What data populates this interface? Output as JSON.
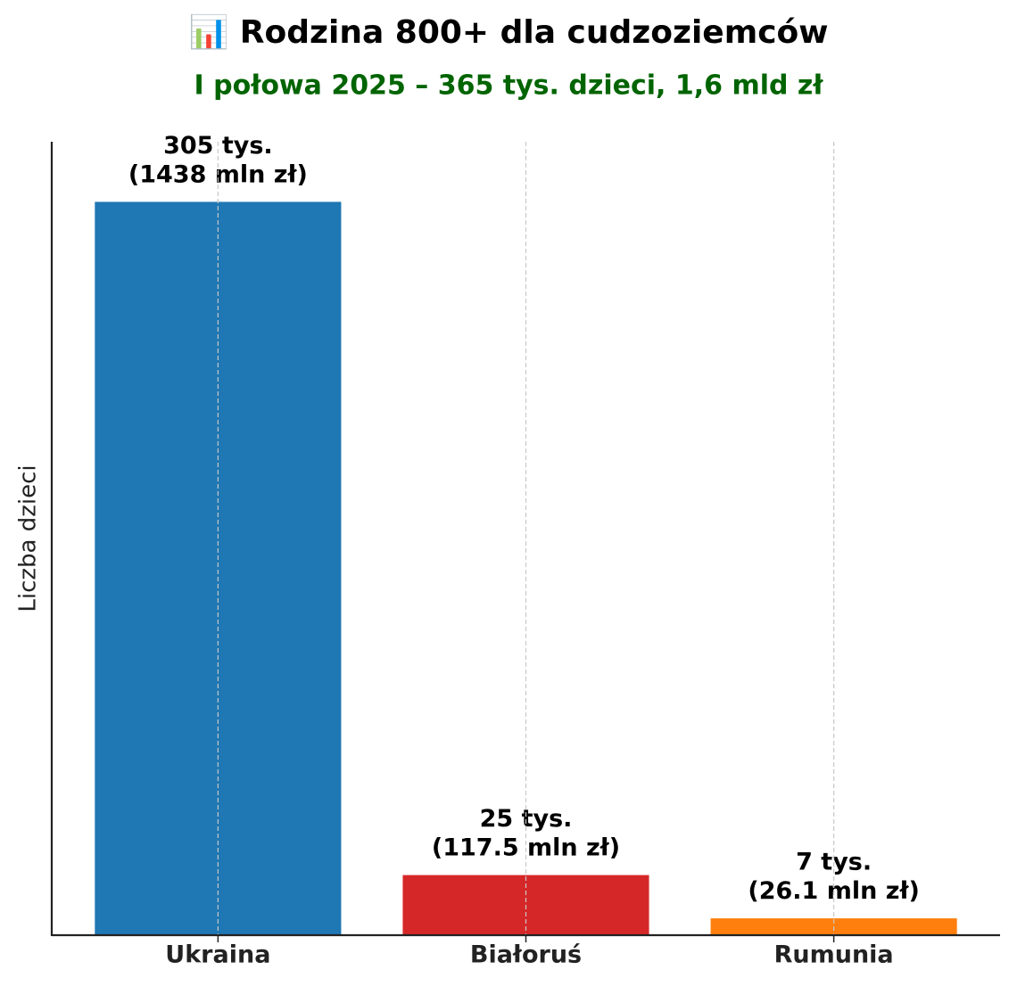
{
  "chart_data": {
    "type": "bar",
    "title": "📊 Rodzina 800+ dla cudzoziemców",
    "subtitle": "I połowa 2025 – 365 tys. dzieci, 1,6 mld zł",
    "y_label": "Liczba dzieci",
    "categories": [
      "Ukraina",
      "Białoruś",
      "Rumunia"
    ],
    "values": [
      305,
      25,
      7
    ],
    "value_labels": [
      "305 tys.\n(1438 mln zł)",
      "25 tys.\n(117.5 mln zł)",
      "7 tys.\n(26.1 mln zł)"
    ],
    "colors": [
      "#1f77b4",
      "#d62728",
      "#ff7f0e"
    ],
    "ylim": [
      0,
      330
    ],
    "yticks": [],
    "grid": "x"
  }
}
